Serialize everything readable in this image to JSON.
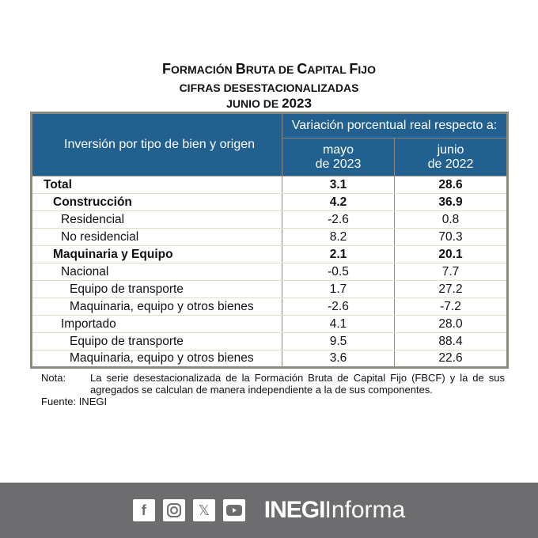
{
  "title": {
    "line1_a": "F",
    "line1_b": "ORMACIÓN ",
    "line1_c": "B",
    "line1_d": "RUTA DE ",
    "line1_e": "C",
    "line1_f": "APITAL ",
    "line1_g": "F",
    "line1_h": "IJO",
    "subtitle": "CIFRAS DESESTACIONALIZADAS",
    "period_prefix": "JUNIO DE",
    "period_year": "2023"
  },
  "table": {
    "header_label": "Inversión por tipo de bien y origen",
    "header_group": "Variación porcentual real respecto a:",
    "col1": [
      "mayo",
      "de 2023"
    ],
    "col2": [
      "junio",
      "de 2022"
    ],
    "rows": [
      {
        "label": "Total",
        "v1": "3.1",
        "v2": "28.6"
      },
      {
        "label": "Construcción",
        "v1": "4.2",
        "v2": "36.9"
      },
      {
        "label": "Residencial",
        "v1": "-2.6",
        "v2": "0.8"
      },
      {
        "label": "No residencial",
        "v1": "8.2",
        "v2": "70.3"
      },
      {
        "label": "Maquinaria y Equipo",
        "v1": "2.1",
        "v2": "20.1"
      },
      {
        "label": "Nacional",
        "v1": "-0.5",
        "v2": "7.7"
      },
      {
        "label": "Equipo de transporte",
        "v1": "1.7",
        "v2": "27.2"
      },
      {
        "label": "Maquinaria, equipo y otros bienes",
        "v1": "-2.6",
        "v2": "-7.2"
      },
      {
        "label": "Importado",
        "v1": "4.1",
        "v2": "28.0"
      },
      {
        "label": "Equipo de transporte",
        "v1": "9.5",
        "v2": "88.4"
      },
      {
        "label": "Maquinaria, equipo y otros bienes",
        "v1": "3.6",
        "v2": "22.6"
      }
    ]
  },
  "note": {
    "label": "Nota:",
    "text": "La serie desestacionalizada de la Formación Bruta de Capital Fijo (FBCF) y la de sus agregados se calculan de manera independiente a la de sus componentes.",
    "source": "Fuente: INEGI"
  },
  "footer": {
    "brand_bold": "INEGI",
    "brand_light": "Informa",
    "icons": [
      "facebook-icon",
      "instagram-icon",
      "x-icon",
      "youtube-icon"
    ]
  }
}
